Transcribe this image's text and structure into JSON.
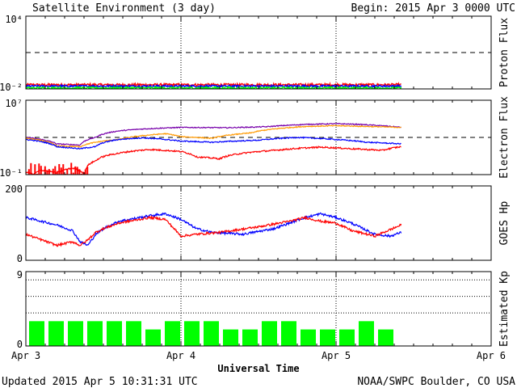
{
  "header": {
    "title": "Satellite Environment (3 day)",
    "begin": "Begin:  2015 Apr 3 0000 UTC"
  },
  "footer": {
    "updated": "Updated 2015 Apr  5 10:31:31 UTC",
    "credit": "NOAA/SWPC Boulder, CO USA",
    "xlabel": "Universal Time"
  },
  "colors": {
    "red": "#ff0000",
    "blue": "#0000ff",
    "green": "#00ff00",
    "purple": "#7700aa",
    "orange": "#ff9900",
    "bar": "#00ff00"
  },
  "chart_data": [
    {
      "id": "proton",
      "type": "line",
      "ylabel": "Proton Flux",
      "scale": "log",
      "ylim": [
        0.01,
        10000
      ],
      "yticks": [
        "10⁴",
        "10⁻²"
      ],
      "threshold": 10,
      "x_unit": "days since Apr 3 0000 UTC",
      "series": [
        {
          "color": "red",
          "x": [
            0,
            0.5,
            1.0,
            1.5,
            2.0,
            2.42
          ],
          "y": [
            0.022,
            0.022,
            0.022,
            0.022,
            0.022,
            0.022
          ],
          "noise": 0.1
        },
        {
          "color": "blue",
          "x": [
            0,
            0.5,
            1.0,
            1.5,
            2.0,
            2.42
          ],
          "y": [
            0.017,
            0.017,
            0.017,
            0.017,
            0.017,
            0.017
          ],
          "noise": 0.08
        },
        {
          "color": "green",
          "x": [
            0,
            0.5,
            1.0,
            1.5,
            2.0,
            2.42
          ],
          "y": [
            0.012,
            0.012,
            0.012,
            0.012,
            0.012,
            0.012
          ],
          "noise": 0.08
        }
      ]
    },
    {
      "id": "electron",
      "type": "line",
      "ylabel": "Electron Flux",
      "scale": "log",
      "ylim": [
        0.1,
        10000000
      ],
      "yticks": [
        "10⁷",
        "10⁻¹"
      ],
      "threshold": 1000,
      "series": [
        {
          "color": "purple",
          "x": [
            0,
            0.2,
            0.35,
            0.45,
            0.6,
            0.75,
            1.0,
            1.3,
            1.55,
            1.8,
            2.0,
            2.15,
            2.42
          ],
          "y": [
            1000,
            200,
            150,
            1000,
            5000,
            8000,
            12000,
            11000,
            14000,
            25000,
            30000,
            25000,
            12000
          ],
          "noise": 0.05
        },
        {
          "color": "orange",
          "x": [
            0,
            0.2,
            0.35,
            0.45,
            0.6,
            0.75,
            0.9,
            1.0,
            1.2,
            1.45,
            1.6,
            1.8,
            2.0,
            2.2,
            2.42
          ],
          "y": [
            800,
            120,
            100,
            300,
            600,
            1500,
            2500,
            1200,
            800,
            3000,
            8000,
            15000,
            18000,
            15000,
            12000
          ],
          "noise": 0.05
        },
        {
          "color": "blue",
          "x": [
            0,
            0.2,
            0.35,
            0.45,
            0.6,
            0.75,
            1.0,
            1.2,
            1.5,
            1.75,
            2.0,
            2.2,
            2.42
          ],
          "y": [
            600,
            100,
            60,
            100,
            600,
            900,
            400,
            300,
            500,
            1000,
            600,
            300,
            200
          ],
          "noise": 0.06
        },
        {
          "color": "red",
          "x": [
            0,
            0.05,
            0.1,
            0.2,
            0.3,
            0.38,
            0.45,
            0.6,
            0.8,
            1.0,
            1.1,
            1.25,
            1.35,
            1.6,
            1.9,
            2.1,
            2.3,
            2.42
          ],
          "y": [
            0.2,
            0.1,
            0.3,
            0.15,
            0.5,
            0.1,
            3,
            20,
            50,
            30,
            8,
            5,
            15,
            40,
            90,
            60,
            40,
            100
          ],
          "noise": 0.08
        }
      ]
    },
    {
      "id": "hp",
      "type": "line",
      "ylabel": "GOES Hp",
      "scale": "linear",
      "ylim": [
        0,
        200
      ],
      "yticks": [
        "200",
        "0"
      ],
      "series": [
        {
          "color": "blue",
          "x": [
            0,
            0.2,
            0.3,
            0.35,
            0.4,
            0.45,
            0.5,
            0.6,
            0.8,
            0.9,
            1.0,
            1.1,
            1.2,
            1.4,
            1.6,
            1.8,
            1.9,
            2.0,
            2.1,
            2.25,
            2.35,
            2.42
          ],
          "y": [
            115,
            95,
            80,
            50,
            40,
            70,
            85,
            105,
            120,
            125,
            110,
            85,
            75,
            70,
            85,
            115,
            125,
            115,
            100,
            70,
            65,
            75
          ],
          "noise": 3
        },
        {
          "color": "red",
          "x": [
            0,
            0.1,
            0.2,
            0.3,
            0.35,
            0.4,
            0.45,
            0.5,
            0.6,
            0.8,
            0.9,
            1.0,
            1.1,
            1.25,
            1.5,
            1.7,
            1.8,
            1.9,
            2.0,
            2.1,
            2.25,
            2.42
          ],
          "y": [
            70,
            55,
            40,
            50,
            40,
            55,
            75,
            85,
            100,
            115,
            110,
            65,
            70,
            75,
            90,
            105,
            115,
            105,
            100,
            80,
            65,
            95
          ],
          "noise": 3
        }
      ]
    },
    {
      "id": "kp",
      "type": "bar",
      "ylabel": "Estimated Kp",
      "ylim": [
        0,
        9
      ],
      "yticks": [
        "9",
        "0"
      ],
      "grid_y": [
        4,
        6,
        8,
        9
      ],
      "bar_width_days": 0.125,
      "values": [
        3,
        3,
        3,
        3,
        3,
        3,
        2,
        3,
        3,
        3,
        2,
        2,
        3,
        3,
        2,
        2,
        2,
        3,
        2
      ]
    }
  ],
  "xaxis": {
    "labels": [
      "Apr 3",
      "Apr 4",
      "Apr 5",
      "Apr 6"
    ],
    "xlim": [
      0,
      3
    ]
  }
}
